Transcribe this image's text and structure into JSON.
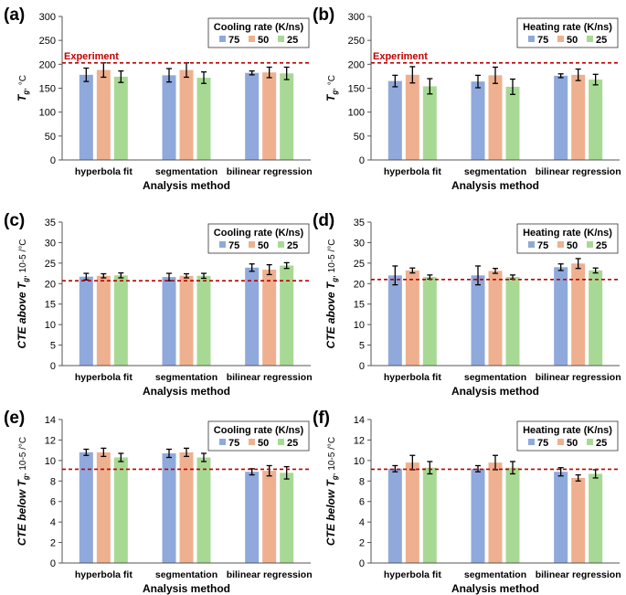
{
  "figure": {
    "series_names": [
      "75",
      "50",
      "25"
    ],
    "series_colors": [
      "#8fa9dc",
      "#efb08f",
      "#a8d994"
    ],
    "reference_color": "#c00000",
    "categories": [
      "hyperbola fit",
      "segmentation",
      "bilinear regression"
    ],
    "xlabel": "Analysis method"
  },
  "chart_data": [
    {
      "panel_label": "(a)",
      "type": "bar",
      "legend_title": "Cooling rate (K/ns)",
      "ylabel": {
        "main": "T",
        "sub": "g",
        "unit": ", °C"
      },
      "ylim": [
        0,
        300
      ],
      "yticks": [
        0,
        50,
        100,
        150,
        200,
        250,
        300
      ],
      "xlabel": "Analysis method",
      "categories": [
        "hyperbola fit",
        "segmentation",
        "bilinear regression"
      ],
      "reference": {
        "value": 203,
        "label": "Experiment"
      },
      "series": [
        {
          "name": "75",
          "values": [
            178,
            177,
            182
          ],
          "errors": [
            14,
            14,
            4
          ]
        },
        {
          "name": "50",
          "values": [
            188,
            188,
            183
          ],
          "errors": [
            15,
            15,
            11
          ]
        },
        {
          "name": "25",
          "values": [
            174,
            172,
            181
          ],
          "errors": [
            12,
            12,
            13
          ]
        }
      ]
    },
    {
      "panel_label": "(b)",
      "type": "bar",
      "legend_title": "Heating rate (K/ns)",
      "ylabel": {
        "main": "T",
        "sub": "g",
        "unit": ", °C"
      },
      "ylim": [
        0,
        300
      ],
      "yticks": [
        0,
        50,
        100,
        150,
        200,
        250,
        300
      ],
      "xlabel": "Analysis method",
      "categories": [
        "hyperbola fit",
        "segmentation",
        "bilinear regression"
      ],
      "reference": {
        "value": 203,
        "label": "Experiment"
      },
      "series": [
        {
          "name": "75",
          "values": [
            165,
            164,
            176
          ],
          "errors": [
            12,
            13,
            4
          ]
        },
        {
          "name": "50",
          "values": [
            178,
            177,
            178
          ],
          "errors": [
            17,
            17,
            12
          ]
        },
        {
          "name": "25",
          "values": [
            154,
            153,
            168
          ],
          "errors": [
            16,
            16,
            11
          ]
        }
      ]
    },
    {
      "panel_label": "(c)",
      "type": "bar",
      "legend_title": "Cooling rate (K/ns)",
      "ylabel": {
        "main": "CTE above T",
        "sub": "g",
        "unit": ", 10-5 /°C"
      },
      "ylim": [
        0,
        35
      ],
      "yticks": [
        0,
        5,
        10,
        15,
        20,
        25,
        30,
        35
      ],
      "xlabel": "Analysis method",
      "categories": [
        "hyperbola fit",
        "segmentation",
        "bilinear regression"
      ],
      "reference": {
        "value": 20.7,
        "label": ""
      },
      "series": [
        {
          "name": "75",
          "values": [
            21.7,
            21.6,
            23.9
          ],
          "errors": [
            0.8,
            0.9,
            0.9
          ]
        },
        {
          "name": "50",
          "values": [
            21.9,
            21.9,
            23.4
          ],
          "errors": [
            0.5,
            0.5,
            1.2
          ]
        },
        {
          "name": "25",
          "values": [
            22.0,
            21.9,
            24.4
          ],
          "errors": [
            0.6,
            0.6,
            0.7
          ]
        }
      ]
    },
    {
      "panel_label": "(d)",
      "type": "bar",
      "legend_title": "Heating rate (K/ns)",
      "ylabel": {
        "main": "CTE above T",
        "sub": "g",
        "unit": ", 10-5 /°C"
      },
      "ylim": [
        0,
        35
      ],
      "yticks": [
        0,
        5,
        10,
        15,
        20,
        25,
        30,
        35
      ],
      "xlabel": "Analysis method",
      "categories": [
        "hyperbola fit",
        "segmentation",
        "bilinear regression"
      ],
      "reference": {
        "value": 21.0,
        "label": ""
      },
      "series": [
        {
          "name": "75",
          "values": [
            22.0,
            22.0,
            24.0
          ],
          "errors": [
            2.3,
            2.3,
            0.8
          ]
        },
        {
          "name": "50",
          "values": [
            23.2,
            23.1,
            24.9
          ],
          "errors": [
            0.6,
            0.6,
            1.2
          ]
        },
        {
          "name": "25",
          "values": [
            21.6,
            21.6,
            23.2
          ],
          "errors": [
            0.5,
            0.5,
            0.6
          ]
        }
      ]
    },
    {
      "panel_label": "(e)",
      "type": "bar",
      "legend_title": "Cooling rate (K/ns)",
      "ylabel": {
        "main": "CTE below T",
        "sub": "g",
        "unit": ", 10-5 /°C"
      },
      "ylim": [
        0,
        14
      ],
      "yticks": [
        0,
        2,
        4,
        6,
        8,
        10,
        12,
        14
      ],
      "xlabel": "Analysis method",
      "categories": [
        "hyperbola fit",
        "segmentation",
        "bilinear regression"
      ],
      "reference": {
        "value": 9.15,
        "label": ""
      },
      "series": [
        {
          "name": "75",
          "values": [
            10.8,
            10.7,
            8.9
          ],
          "errors": [
            0.3,
            0.4,
            0.3
          ]
        },
        {
          "name": "50",
          "values": [
            10.8,
            10.8,
            9.0
          ],
          "errors": [
            0.4,
            0.4,
            0.5
          ]
        },
        {
          "name": "25",
          "values": [
            10.3,
            10.3,
            8.8
          ],
          "errors": [
            0.4,
            0.4,
            0.6
          ]
        }
      ]
    },
    {
      "panel_label": "(f)",
      "type": "bar",
      "legend_title": "Heating rate (K/ns)",
      "ylabel": {
        "main": "CTE below T",
        "sub": "g",
        "unit": ", 10-5 /°C"
      },
      "ylim": [
        0,
        14
      ],
      "yticks": [
        0,
        2,
        4,
        6,
        8,
        10,
        12,
        14
      ],
      "xlabel": "Analysis method",
      "categories": [
        "hyperbola fit",
        "segmentation",
        "bilinear regression"
      ],
      "reference": {
        "value": 9.15,
        "label": ""
      },
      "series": [
        {
          "name": "75",
          "values": [
            9.2,
            9.2,
            8.9
          ],
          "errors": [
            0.3,
            0.3,
            0.4
          ]
        },
        {
          "name": "50",
          "values": [
            9.8,
            9.8,
            8.3
          ],
          "errors": [
            0.7,
            0.7,
            0.3
          ]
        },
        {
          "name": "25",
          "values": [
            9.3,
            9.3,
            8.7
          ],
          "errors": [
            0.6,
            0.6,
            0.4
          ]
        }
      ]
    }
  ]
}
